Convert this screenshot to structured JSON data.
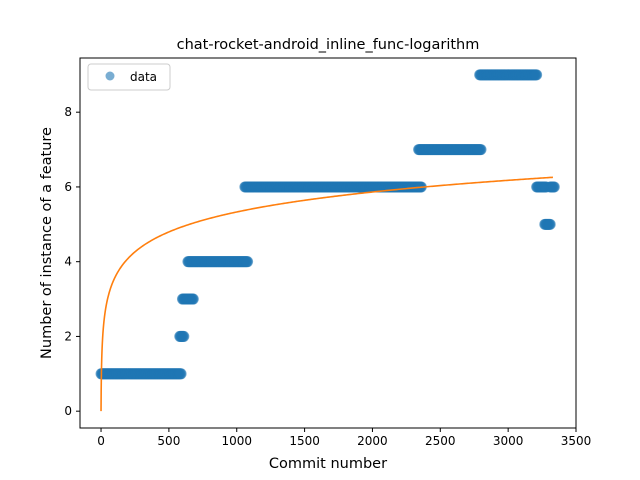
{
  "chart_data": {
    "type": "scatter",
    "title": "chat-rocket-android_inline_func-logarithm",
    "xlabel": "Commit number",
    "ylabel": "Number of instance of a feature",
    "xlim": [
      -155,
      3500
    ],
    "ylim": [
      -0.45,
      9.45
    ],
    "xticks": [
      0,
      500,
      1000,
      1500,
      2000,
      2500,
      3000,
      3500
    ],
    "yticks": [
      0,
      2,
      4,
      6,
      8
    ],
    "xtick_labels": [
      "0",
      "500",
      "1000",
      "1500",
      "2000",
      "2500",
      "3000",
      "3500"
    ],
    "ytick_labels": [
      "0",
      "2",
      "4",
      "6",
      "8"
    ],
    "legend": {
      "position": "top-left",
      "entries": [
        "data"
      ]
    },
    "grid": false,
    "series": [
      {
        "name": "data",
        "kind": "points",
        "color": "#1f77b4",
        "segments": [
          {
            "x_start": 0,
            "x_end": 590,
            "y": 1
          },
          {
            "x_start": 580,
            "x_end": 610,
            "y": 2
          },
          {
            "x_start": 600,
            "x_end": 680,
            "y": 3
          },
          {
            "x_start": 640,
            "x_end": 1080,
            "y": 4
          },
          {
            "x_start": 1060,
            "x_end": 2360,
            "y": 6
          },
          {
            "x_start": 2340,
            "x_end": 2800,
            "y": 7
          },
          {
            "x_start": 2790,
            "x_end": 3210,
            "y": 9
          },
          {
            "x_start": 3210,
            "x_end": 3280,
            "y": 6
          },
          {
            "x_start": 3270,
            "x_end": 3310,
            "y": 5
          },
          {
            "x_start": 3310,
            "x_end": 3340,
            "y": 6
          }
        ]
      },
      {
        "kind": "fit-line",
        "color": "#ff7f0e",
        "formula": "y = 0.7715 * ln(x + 1)",
        "x_range": [
          0,
          3330
        ]
      }
    ]
  }
}
